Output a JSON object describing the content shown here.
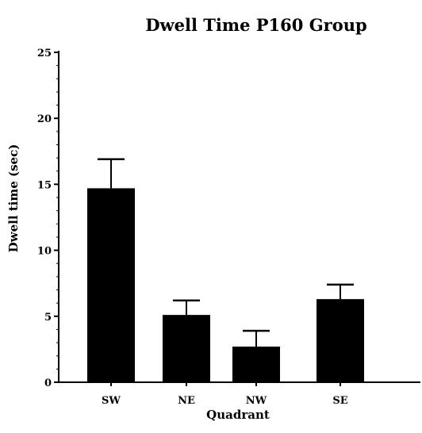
{
  "chart_data": {
    "type": "bar",
    "title": "Dwell Time P160 Group",
    "xlabel": "Quadrant",
    "ylabel": "Dwell time (sec)",
    "categories": [
      "SW",
      "NE",
      "NW",
      "SE"
    ],
    "values": [
      14.7,
      5.1,
      2.7,
      6.3
    ],
    "error_upper": [
      16.9,
      6.2,
      3.9,
      7.4
    ],
    "ylim": [
      0,
      25
    ],
    "yticks": [
      0,
      5,
      10,
      15,
      20,
      25
    ],
    "bar_color": "#000000",
    "grid": false,
    "legend": "none"
  }
}
